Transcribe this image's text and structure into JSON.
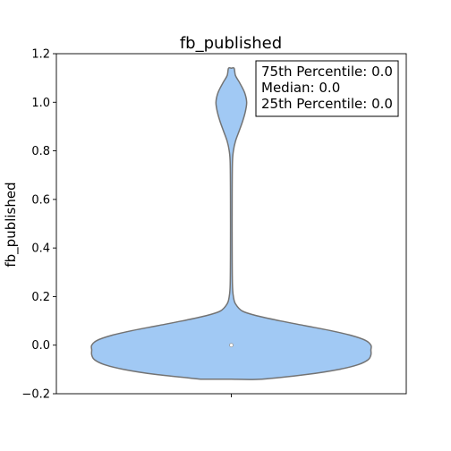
{
  "chart_data": {
    "type": "violin",
    "title": "fb_published",
    "xlabel": "",
    "ylabel": "fb_published",
    "ylim": [
      -0.2,
      1.2
    ],
    "yticks": [
      -0.2,
      0.0,
      0.2,
      0.4,
      0.6,
      0.8,
      1.0,
      1.2
    ],
    "ytick_labels": [
      "−0.2",
      "0.0",
      "0.2",
      "0.4",
      "0.6",
      "0.8",
      "1.0",
      "1.2"
    ],
    "series": [
      {
        "fill_color": "#a1c9f4",
        "edge_color": "#737373",
        "median": 0.0,
        "density_profile": [
          {
            "y": -0.14,
            "w": 0.22
          },
          {
            "y": -0.12,
            "w": 0.55
          },
          {
            "y": -0.1,
            "w": 0.77
          },
          {
            "y": -0.08,
            "w": 0.91
          },
          {
            "y": -0.06,
            "w": 0.98
          },
          {
            "y": -0.04,
            "w": 1.0
          },
          {
            "y": -0.02,
            "w": 1.0
          },
          {
            "y": 0.0,
            "w": 1.0
          },
          {
            "y": 0.02,
            "w": 0.96
          },
          {
            "y": 0.04,
            "w": 0.86
          },
          {
            "y": 0.06,
            "w": 0.71
          },
          {
            "y": 0.08,
            "w": 0.53
          },
          {
            "y": 0.1,
            "w": 0.35
          },
          {
            "y": 0.12,
            "w": 0.19
          },
          {
            "y": 0.14,
            "w": 0.08
          },
          {
            "y": 0.17,
            "w": 0.03
          },
          {
            "y": 0.2,
            "w": 0.015
          },
          {
            "y": 0.25,
            "w": 0.008
          },
          {
            "y": 0.4,
            "w": 0.006
          },
          {
            "y": 0.6,
            "w": 0.006
          },
          {
            "y": 0.75,
            "w": 0.008
          },
          {
            "y": 0.8,
            "w": 0.015
          },
          {
            "y": 0.84,
            "w": 0.03
          },
          {
            "y": 0.88,
            "w": 0.055
          },
          {
            "y": 0.92,
            "w": 0.08
          },
          {
            "y": 0.96,
            "w": 0.1
          },
          {
            "y": 1.0,
            "w": 0.11
          },
          {
            "y": 1.04,
            "w": 0.095
          },
          {
            "y": 1.08,
            "w": 0.06
          },
          {
            "y": 1.11,
            "w": 0.03
          },
          {
            "y": 1.14,
            "w": 0.02
          }
        ]
      }
    ],
    "annotation": {
      "lines": [
        "75th Percentile: 0.0",
        "Median: 0.0",
        "25th Percentile: 0.0"
      ],
      "position": "top-right"
    }
  }
}
